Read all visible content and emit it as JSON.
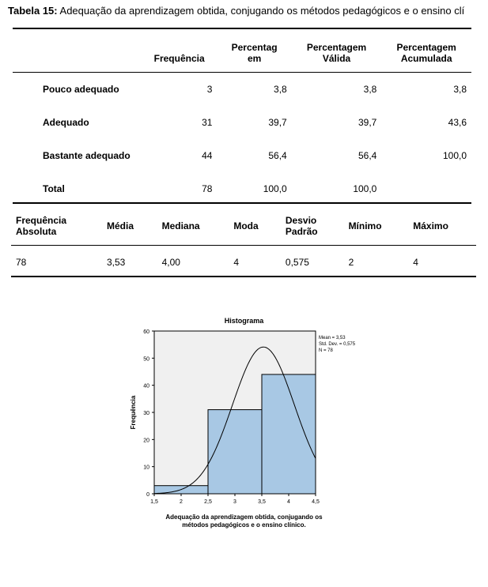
{
  "title_prefix": "Tabela 15:",
  "title_rest": " Adequação da aprendizagem obtida, conjugando os métodos pedagógicos e o ensino clí",
  "table1": {
    "headers": [
      "",
      "Frequência",
      "Percentag\nem",
      "Percentagem\nVálida",
      "Percentagem\nAcumulada"
    ],
    "rows": [
      {
        "label": "Pouco adequado",
        "freq": "3",
        "pct": "3,8",
        "valid": "3,8",
        "cum": "3,8"
      },
      {
        "label": "Adequado",
        "freq": "31",
        "pct": "39,7",
        "valid": "39,7",
        "cum": "43,6"
      },
      {
        "label": "Bastante adequado",
        "freq": "44",
        "pct": "56,4",
        "valid": "56,4",
        "cum": "100,0"
      },
      {
        "label": "Total",
        "freq": "78",
        "pct": "100,0",
        "valid": "100,0",
        "cum": ""
      }
    ]
  },
  "table2": {
    "headers": [
      "Frequência\nAbsoluta",
      "Média",
      "Mediana",
      "Moda",
      "Desvio\nPadrão",
      "Mínimo",
      "Máximo"
    ],
    "row": [
      "78",
      "3,53",
      "4,00",
      "4",
      "0,575",
      "2",
      "4"
    ]
  },
  "histogram": {
    "title": "Histograma",
    "xlabel": "Adequação da aprendizagem obtida, conjugando os\nmétodos pedagógicos e o ensino clínico.",
    "ylabel": "Frequência",
    "stats": [
      "Mean = 3,53",
      "Std. Dev. = 0,575",
      "N = 78"
    ],
    "ylim": [
      0,
      60
    ],
    "ytick_step": 10,
    "xlim": [
      1.5,
      4.5
    ],
    "xticks": [
      1.5,
      2,
      2.5,
      3,
      3.5,
      4,
      4.5
    ],
    "xtick_labels": [
      "1,5",
      "2",
      "2,5",
      "3",
      "3,5",
      "4",
      "4,5"
    ],
    "bars": [
      {
        "x": 2,
        "height": 3
      },
      {
        "x": 3,
        "height": 31
      },
      {
        "x": 4,
        "height": 44
      }
    ],
    "bar_width": 1.0,
    "bar_fill": "#a8c8e4",
    "bar_stroke": "#000000",
    "plot_bg": "#f0f0f0",
    "outer_bg": "#ffffff",
    "axis_color": "#000000",
    "curve_color": "#000000",
    "curve": {
      "mean": 3.53,
      "sd": 0.575,
      "n": 78,
      "binw": 1.0
    }
  }
}
